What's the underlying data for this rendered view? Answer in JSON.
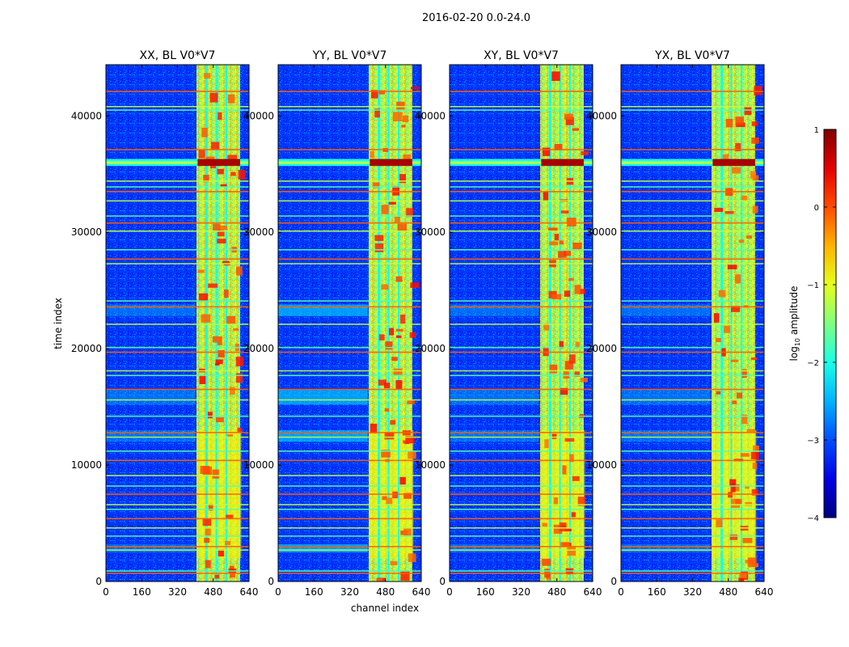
{
  "chart_data": {
    "type": "heatmap",
    "suptitle": "2016-02-20 0.0-24.0",
    "panels": [
      {
        "title": "XX, BL V0*V7",
        "polarization": "XX"
      },
      {
        "title": "YY, BL V0*V7",
        "polarization": "YY"
      },
      {
        "title": "XY, BL V0*V7",
        "polarization": "XY"
      },
      {
        "title": "YX, BL V0*V7",
        "polarization": "YX"
      }
    ],
    "xlabel": "channel index",
    "ylabel": "time index",
    "xlim": [
      0,
      640
    ],
    "ylim": [
      0,
      44400
    ],
    "xticks": [
      0,
      160,
      320,
      480,
      640
    ],
    "xtick_labels": [
      "0",
      "160",
      "320",
      "480",
      "640"
    ],
    "yticks": [
      0,
      10000,
      20000,
      30000,
      40000
    ],
    "ytick_labels": [
      "0",
      "10000",
      "20000",
      "30000",
      "40000"
    ],
    "colorbar": {
      "label_base": "log",
      "label_sub": "10",
      "label_rest": " amplitude",
      "range": [
        -4,
        1
      ],
      "ticks": [
        1,
        0,
        -1,
        -2,
        -3,
        -4
      ],
      "tick_labels": [
        "1",
        "0",
        "−1",
        "−2",
        "−3",
        "−4"
      ],
      "colormap": "jet"
    },
    "features": {
      "background_level": -3.1,
      "bright_band_channels": [
        [
          405,
          600
        ]
      ],
      "bright_band_level": -1.3,
      "gap_channels": [
        [
          445,
          455
        ],
        [
          490,
          497
        ],
        [
          535,
          542
        ]
      ],
      "strong_rfi_time": [
        35700,
        36300
      ],
      "strong_rfi_level": 0.8,
      "rfi_time_lines": [
        42100,
        40800,
        40500,
        37100,
        34400,
        33900,
        33500,
        32700,
        31400,
        30800,
        30100,
        28500,
        27700,
        27300,
        24100,
        23600,
        22100,
        20100,
        19700,
        18100,
        17700,
        16500,
        15600,
        14200,
        12800,
        12400,
        11200,
        10400,
        9100,
        8200,
        7500,
        6600,
        6200,
        5400,
        4600,
        3900,
        3000,
        2700,
        900,
        700
      ]
    }
  }
}
